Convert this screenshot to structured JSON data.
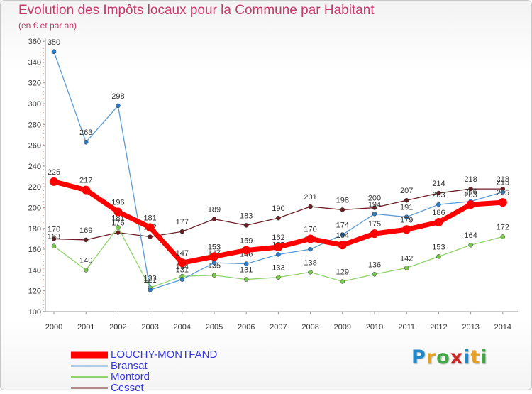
{
  "header": {
    "title": "Evolution des Impôts locaux pour la Commune par Habitant",
    "subtitle": "(en € et par an)"
  },
  "logo": {
    "text": "Proxiti",
    "colors": [
      "#1e88c8",
      "#e8a020",
      "#43a843",
      "#c82828",
      "#1e88c8",
      "#e8a020",
      "#43a843"
    ]
  },
  "chart_data": {
    "type": "line",
    "title": "Evolution des Impôts locaux pour la Commune par Habitant",
    "subtitle": "(en € et par an)",
    "xlabel": "",
    "ylabel": "",
    "ylim": [
      100,
      360
    ],
    "yticks": [
      100,
      120,
      140,
      160,
      180,
      200,
      220,
      240,
      260,
      280,
      300,
      320,
      340,
      360
    ],
    "grid": false,
    "legend_position": "bottom-left",
    "categories": [
      "2000",
      "2001",
      "2002",
      "2003",
      "2004",
      "2005",
      "2006",
      "2007",
      "2008",
      "2009",
      "2010",
      "2011",
      "2012",
      "2013",
      "2014"
    ],
    "series": [
      {
        "name": "Cesset",
        "color": "#6b1f24",
        "point_color": "#6b1f24",
        "width": 1.3,
        "values": [
          170,
          169,
          176,
          172,
          177,
          189,
          183,
          190,
          201,
          198,
          200,
          207,
          214,
          218,
          218
        ],
        "labels": [
          "170",
          "169",
          "176",
          "172",
          "177",
          "189",
          "183",
          "190",
          "201",
          "198",
          "200",
          "207",
          "214",
          "218",
          "218"
        ]
      },
      {
        "name": "Montord",
        "color": "#8fd36a",
        "point_color": "#7bc84f",
        "width": 1.3,
        "values": [
          163,
          140,
          181,
          123,
          134,
          135,
          131,
          133,
          138,
          129,
          136,
          142,
          153,
          164,
          172
        ],
        "labels": [
          "163",
          "140",
          "181",
          "123",
          "134",
          "135",
          "131",
          "133",
          "138",
          "129",
          "136",
          "142",
          "153",
          "164",
          "172"
        ]
      },
      {
        "name": "Bransat",
        "color": "#5b9bd5",
        "point_color": "#2d7cc8",
        "width": 1.3,
        "values": [
          350,
          263,
          298,
          121,
          131,
          147,
          146,
          155,
          160,
          174,
          194,
          191,
          203,
          206,
          215
        ],
        "labels": [
          "350",
          "263",
          "298",
          "121",
          "131",
          "147",
          "146",
          "155",
          "160",
          "174",
          "194",
          "191",
          "203",
          "206",
          "215"
        ]
      },
      {
        "name": "LOUCHY-MONTFAND",
        "color": "#ff0000",
        "point_color": "#ff0000",
        "width": 7,
        "values": [
          225,
          217,
          196,
          181,
          147,
          153,
          159,
          162,
          170,
          164,
          175,
          179,
          186,
          203,
          205
        ],
        "labels": [
          "225",
          "217",
          "196",
          "181",
          "147",
          "153",
          "159",
          "162",
          "170",
          "164",
          "175",
          "179",
          "186",
          "203",
          "205"
        ]
      }
    ],
    "legend": [
      {
        "name": "LOUCHY-MONTFAND",
        "color": "#ff0000",
        "text_color": "#3535e0"
      },
      {
        "name": "Bransat",
        "color": "#5b9bd5",
        "text_color": "#3535e0"
      },
      {
        "name": "Montord",
        "color": "#8fd36a",
        "text_color": "#3535e0"
      },
      {
        "name": "Cesset",
        "color": "#6b1f24",
        "text_color": "#3535e0"
      }
    ]
  }
}
